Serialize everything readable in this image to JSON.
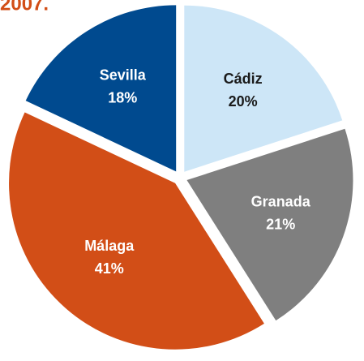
{
  "chart_data": {
    "type": "pie",
    "title": "2007.",
    "categories": [
      "Cádiz",
      "Granada",
      "Málaga",
      "Sevilla"
    ],
    "values": [
      20,
      21,
      41,
      18
    ],
    "value_labels": [
      "20%",
      "21%",
      "41%",
      "18%"
    ],
    "colors": [
      "#cde6f7",
      "#7f7f7f",
      "#d24e17",
      "#004a8f"
    ],
    "label_colors": [
      "#1a1a1a",
      "#ffffff",
      "#ffffff",
      "#ffffff"
    ]
  }
}
